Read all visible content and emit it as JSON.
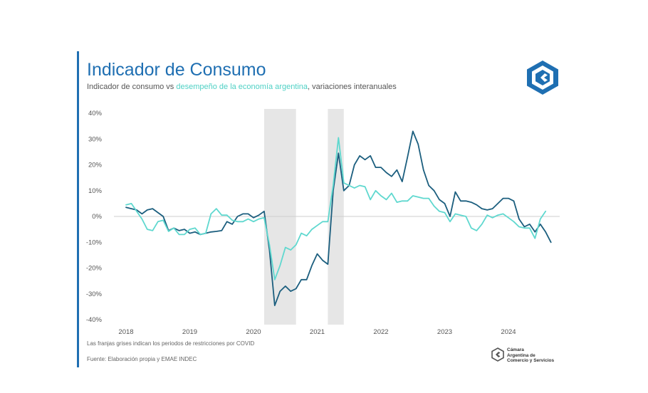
{
  "header": {
    "title": "Indicador de Consumo",
    "subtitle_prefix": "Indicador de consumo vs ",
    "subtitle_highlight": "desempeño de la economía argentina",
    "subtitle_suffix": ", variaciones interanuales"
  },
  "footer": {
    "note": "Las franjas grises indican los periodos de restricciones por COVID",
    "source": "Fuente: Elaboración propia y EMAE INDEC"
  },
  "brand": {
    "lines": [
      "Cámara",
      "Argentina de",
      "Comercio y Servicios"
    ]
  },
  "colors": {
    "accent": "#1f6fb2",
    "consumo": "#1b5e7e",
    "economia": "#5fd8cf",
    "covid_band": "#e6e6e6"
  },
  "chart_data": {
    "type": "line",
    "title": "Indicador de Consumo",
    "ylim": [
      -0.4,
      0.4
    ],
    "yticks": [
      0.4,
      0.3,
      0.2,
      0.1,
      0,
      -0.1,
      -0.2,
      -0.3,
      -0.4
    ],
    "ytick_labels": [
      "40%",
      "30%",
      "20%",
      "10%",
      "0%",
      "-10%",
      "-20%",
      "-30%",
      "-40%"
    ],
    "xticks": [
      "2018",
      "2019",
      "2020",
      "2021",
      "2022",
      "2023",
      "2024"
    ],
    "grid": false,
    "shaded_periods": [
      {
        "start": "2020-03",
        "end": "2020-09"
      },
      {
        "start": "2021-03",
        "end": "2021-06"
      }
    ],
    "series": [
      {
        "name": "Indicador de consumo",
        "color": "#1b5e7e",
        "start": "2018-01",
        "values": [
          0.035,
          0.03,
          0.025,
          0.01,
          0.025,
          0.03,
          0.015,
          0.0,
          -0.055,
          -0.045,
          -0.055,
          -0.05,
          -0.065,
          -0.06,
          -0.07,
          -0.065,
          -0.06,
          -0.058,
          -0.055,
          -0.02,
          -0.03,
          0.0,
          0.01,
          0.01,
          -0.005,
          0.005,
          0.02,
          -0.13,
          -0.345,
          -0.29,
          -0.27,
          -0.29,
          -0.28,
          -0.245,
          -0.245,
          -0.19,
          -0.145,
          -0.17,
          -0.185,
          0.1,
          0.245,
          0.1,
          0.12,
          0.2,
          0.235,
          0.22,
          0.235,
          0.19,
          0.19,
          0.17,
          0.155,
          0.18,
          0.135,
          0.23,
          0.33,
          0.28,
          0.18,
          0.12,
          0.1,
          0.065,
          0.05,
          0.0,
          0.095,
          0.06,
          0.06,
          0.055,
          0.045,
          0.03,
          0.025,
          0.03,
          0.05,
          0.07,
          0.07,
          0.06,
          -0.01,
          -0.04,
          -0.03,
          -0.06,
          -0.03,
          -0.06,
          -0.1
        ]
      },
      {
        "name": "Desempeño de la economía argentina",
        "color": "#5fd8cf",
        "start": "2018-01",
        "values": [
          0.045,
          0.05,
          0.02,
          -0.01,
          -0.05,
          -0.055,
          -0.02,
          -0.015,
          -0.058,
          -0.045,
          -0.07,
          -0.07,
          -0.05,
          -0.045,
          -0.07,
          -0.065,
          0.01,
          0.03,
          0.005,
          0.005,
          -0.015,
          -0.02,
          -0.02,
          -0.01,
          -0.02,
          -0.01,
          -0.005,
          -0.11,
          -0.245,
          -0.19,
          -0.12,
          -0.13,
          -0.11,
          -0.065,
          -0.075,
          -0.05,
          -0.035,
          -0.02,
          -0.02,
          0.12,
          0.305,
          0.13,
          0.12,
          0.11,
          0.12,
          0.115,
          0.065,
          0.1,
          0.08,
          0.065,
          0.09,
          0.055,
          0.06,
          0.06,
          0.08,
          0.075,
          0.07,
          0.07,
          0.04,
          0.02,
          0.015,
          -0.02,
          0.01,
          0.005,
          0.0,
          -0.045,
          -0.055,
          -0.03,
          0.005,
          -0.005,
          0.005,
          0.01,
          -0.005,
          -0.02,
          -0.04,
          -0.045,
          -0.045,
          -0.085,
          -0.01,
          0.02
        ]
      }
    ]
  }
}
